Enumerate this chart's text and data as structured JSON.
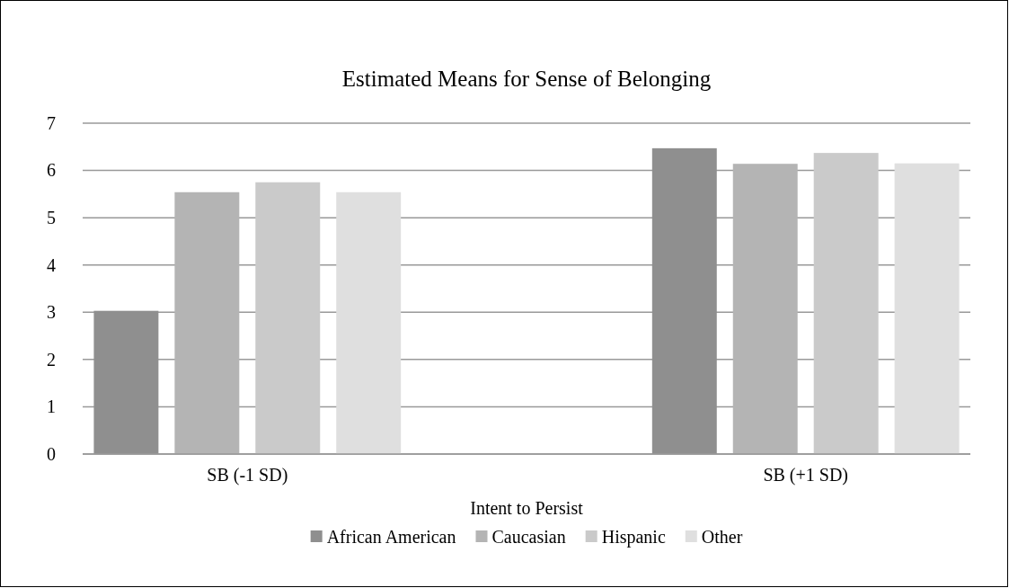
{
  "chart_data": {
    "type": "bar",
    "title": "Estimated Means for Sense of Belonging",
    "xlabel": "Intent to Persist",
    "categories": [
      "SB (-1 SD)",
      "SB (+1 SD)"
    ],
    "series": [
      {
        "name": "African American",
        "color": "#8f8f8f",
        "values": [
          3.03,
          6.47
        ]
      },
      {
        "name": "Caucasian",
        "color": "#b4b4b4",
        "values": [
          5.54,
          6.14
        ]
      },
      {
        "name": "Hispanic",
        "color": "#cacaca",
        "values": [
          5.75,
          6.37
        ]
      },
      {
        "name": "Other",
        "color": "#dfdfdf",
        "values": [
          5.54,
          6.15
        ]
      }
    ],
    "ylim": [
      0,
      7
    ],
    "yticks": [
      0,
      1,
      2,
      3,
      4,
      5,
      6,
      7
    ],
    "grid": "y",
    "legend": "bottom"
  }
}
